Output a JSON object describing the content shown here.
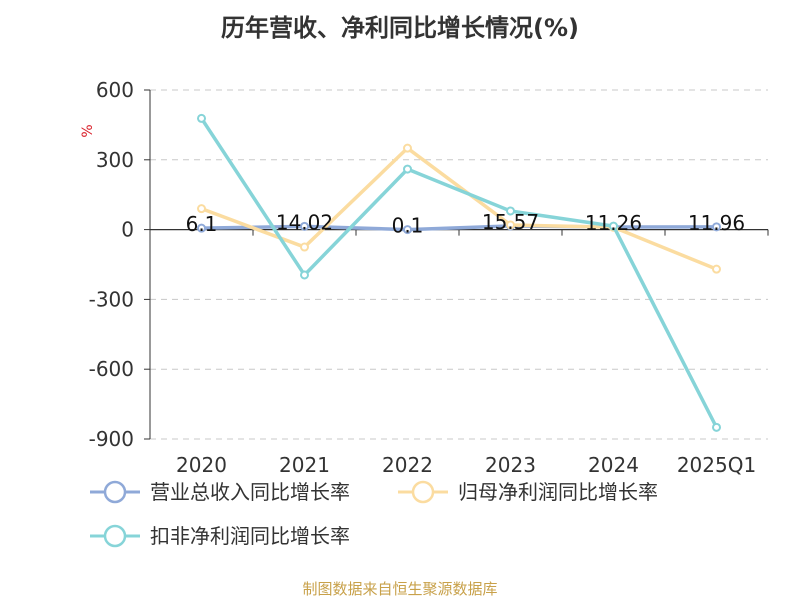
{
  "chart_data": {
    "type": "line",
    "title": "历年营收、净利同比增长情况(%)",
    "ylabel": "%",
    "categories": [
      "2020",
      "2021",
      "2022",
      "2023",
      "2024",
      "2025Q1"
    ],
    "ylim": [
      -900,
      600
    ],
    "yticks": [
      600,
      300,
      0,
      -300,
      -600,
      -900
    ],
    "grid": true,
    "legend_position": "bottom-left",
    "series": [
      {
        "name": "营业总收入同比增长率",
        "color": "#8fa9d8",
        "values": [
          6.1,
          14.02,
          0.1,
          15.57,
          11.26,
          11.96
        ],
        "labels": [
          "6.1",
          "14.02",
          "0.1",
          "15.57",
          "11.26",
          "11.96"
        ]
      },
      {
        "name": "归母净利润同比增长率",
        "color": "#fbdca0",
        "values": [
          90,
          -75,
          350,
          20,
          10,
          -170
        ]
      },
      {
        "name": "扣非净利润同比增长率",
        "color": "#86d4d8",
        "values": [
          478,
          -195,
          260,
          80,
          15,
          -850
        ]
      }
    ]
  },
  "footer": {
    "source": "制图数据来自恒生聚源数据库"
  }
}
